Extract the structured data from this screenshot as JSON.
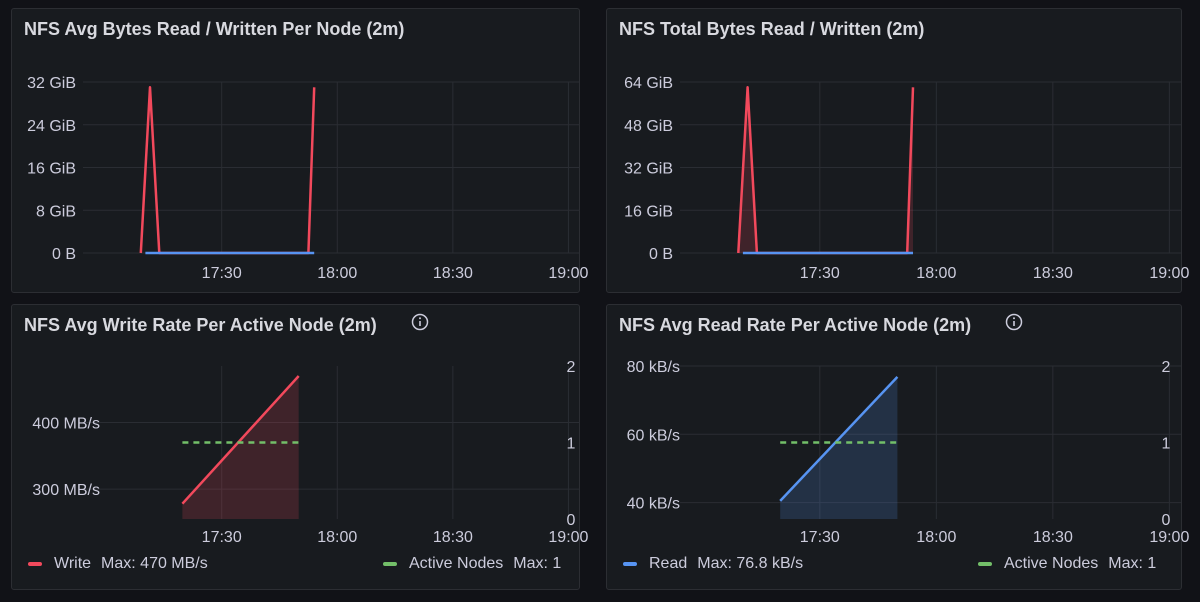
{
  "colors": {
    "write": "#f2495c",
    "read": "#5794f2",
    "nodes": "#73bf69",
    "grid": "#2a2d33"
  },
  "panels": {
    "avg_bytes": {
      "title": "NFS Avg Bytes Read / Written Per Node (2m)"
    },
    "total_bytes": {
      "title": "NFS Total Bytes Read / Written (2m)"
    },
    "write_rate": {
      "title": "NFS Avg Write Rate Per Active Node (2m)",
      "legend": {
        "series": "Write",
        "series_max": "Max: 470 MB/s",
        "nodes": "Active Nodes",
        "nodes_max": "Max: 1"
      }
    },
    "read_rate": {
      "title": "NFS Avg Read Rate Per Active Node (2m)",
      "legend": {
        "series": "Read",
        "series_max": "Max: 76.8 kB/s",
        "nodes": "Active Nodes",
        "nodes_max": "Max: 1"
      }
    }
  },
  "chart_data": [
    {
      "type": "line",
      "title": "NFS Avg Bytes Read / Written Per Node (2m)",
      "x_ticks": [
        "17:30",
        "18:00",
        "18:30",
        "19:00"
      ],
      "xlim": [
        16.9,
        19.05
      ],
      "y_ticks": [
        "0 B",
        "8 GiB",
        "16 GiB",
        "24 GiB",
        "32 GiB"
      ],
      "ylim": [
        0,
        32
      ],
      "series": [
        {
          "color": "write",
          "fill": false,
          "points": [
            [
              17.15,
              0
            ],
            [
              17.19,
              31
            ],
            [
              17.23,
              0
            ],
            [
              17.875,
              0
            ],
            [
              17.9,
              31
            ]
          ]
        },
        {
          "color": "read",
          "fill": false,
          "points": [
            [
              17.17,
              0
            ],
            [
              17.9,
              0
            ]
          ]
        }
      ]
    },
    {
      "type": "area",
      "title": "NFS Total Bytes Read / Written (2m)",
      "x_ticks": [
        "17:30",
        "18:00",
        "18:30",
        "19:00"
      ],
      "xlim": [
        16.9,
        19.05
      ],
      "y_ticks": [
        "0 B",
        "16 GiB",
        "32 GiB",
        "48 GiB",
        "64 GiB"
      ],
      "ylim": [
        0,
        64
      ],
      "series": [
        {
          "color": "write",
          "fill": true,
          "points": [
            [
              17.15,
              0
            ],
            [
              17.19,
              62
            ],
            [
              17.23,
              0
            ],
            [
              17.875,
              0
            ],
            [
              17.9,
              62
            ]
          ]
        },
        {
          "color": "read",
          "fill": false,
          "points": [
            [
              17.17,
              0
            ],
            [
              17.9,
              0
            ]
          ]
        }
      ]
    },
    {
      "type": "area",
      "title": "NFS Avg Write Rate Per Active Node (2m)",
      "x_ticks": [
        "17:30",
        "18:00",
        "18:30",
        "19:00"
      ],
      "xlim": [
        16.9,
        19.05
      ],
      "y_ticks": [
        "300 MB/s",
        "400 MB/s"
      ],
      "y_tick_values": [
        300,
        400
      ],
      "ylim": [
        255,
        485
      ],
      "y2_ticks": [
        "0",
        "1",
        "2"
      ],
      "y2lim": [
        0,
        2
      ],
      "series": [
        {
          "name": "Write",
          "color": "write",
          "fill": true,
          "axis": "left",
          "points": [
            [
              17.33,
              278
            ],
            [
              17.833,
              470
            ]
          ]
        },
        {
          "name": "Active Nodes",
          "color": "nodes",
          "dashed": true,
          "axis": "right",
          "points": [
            [
              17.33,
              1
            ],
            [
              17.833,
              1
            ]
          ]
        }
      ]
    },
    {
      "type": "area",
      "title": "NFS Avg Read Rate Per Active Node (2m)",
      "x_ticks": [
        "17:30",
        "18:00",
        "18:30",
        "19:00"
      ],
      "xlim": [
        16.9,
        19.05
      ],
      "y_ticks": [
        "40 kB/s",
        "60 kB/s",
        "80 kB/s"
      ],
      "y_tick_values": [
        40,
        60,
        80
      ],
      "ylim": [
        35.2,
        80
      ],
      "y2_ticks": [
        "0",
        "1",
        "2"
      ],
      "y2lim": [
        0,
        2
      ],
      "series": [
        {
          "name": "Read",
          "color": "read",
          "fill": true,
          "axis": "left",
          "points": [
            [
              17.33,
              40.5
            ],
            [
              17.833,
              76.8
            ]
          ]
        },
        {
          "name": "Active Nodes",
          "color": "nodes",
          "dashed": true,
          "axis": "right",
          "points": [
            [
              17.33,
              1
            ],
            [
              17.833,
              1
            ]
          ]
        }
      ]
    }
  ]
}
